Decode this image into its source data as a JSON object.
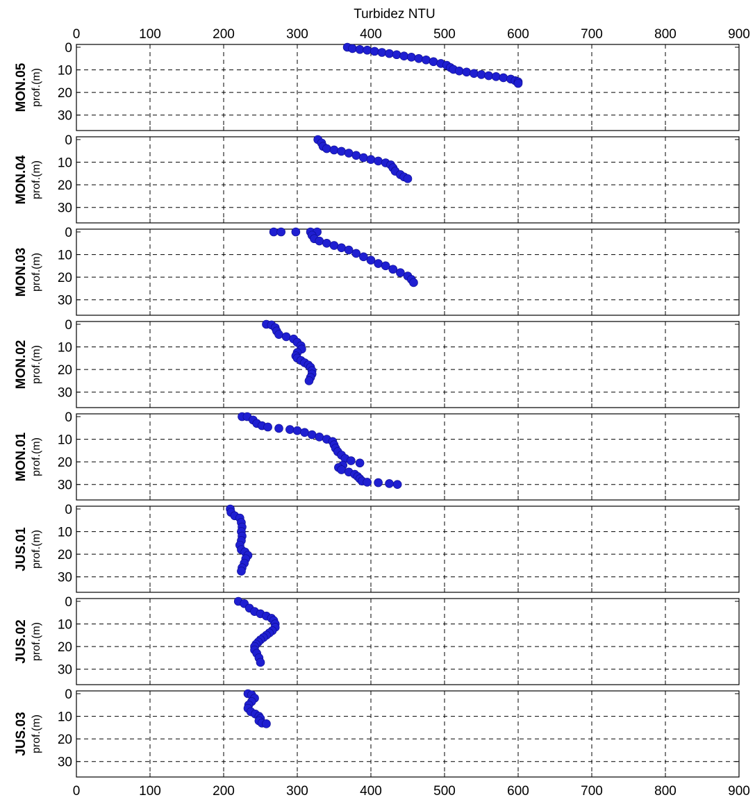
{
  "chart_data": {
    "type": "scatter",
    "title": "",
    "xlabel": "Turbidez NTU",
    "ylabel": "prof.(m)",
    "xlim": [
      0,
      900
    ],
    "ylim": [
      0,
      35
    ],
    "y_inverted": true,
    "x_ticks": [
      "0",
      "100",
      "200",
      "300",
      "400",
      "500",
      "600",
      "700",
      "800",
      "900"
    ],
    "y_ticks": [
      "0",
      "10",
      "20",
      "30"
    ],
    "grid": true,
    "marker_color": "#1f1fd1",
    "series": [
      {
        "name": "MON.05",
        "points": [
          [
            368,
            0
          ],
          [
            375,
            0.6
          ],
          [
            385,
            1
          ],
          [
            395,
            1.3
          ],
          [
            405,
            1.8
          ],
          [
            415,
            2.3
          ],
          [
            425,
            2.8
          ],
          [
            435,
            3.3
          ],
          [
            445,
            3.9
          ],
          [
            455,
            4.4
          ],
          [
            465,
            5
          ],
          [
            475,
            5.6
          ],
          [
            485,
            6.4
          ],
          [
            495,
            7.2
          ],
          [
            503,
            8
          ],
          [
            508,
            9
          ],
          [
            512,
            9.8
          ],
          [
            520,
            10.5
          ],
          [
            530,
            11
          ],
          [
            540,
            11.6
          ],
          [
            550,
            12.1
          ],
          [
            560,
            12.6
          ],
          [
            570,
            13
          ],
          [
            580,
            13.5
          ],
          [
            590,
            14.1
          ],
          [
            596,
            14.8
          ],
          [
            600,
            15.3
          ],
          [
            600,
            16
          ]
        ]
      },
      {
        "name": "MON.04",
        "points": [
          [
            328,
            0
          ],
          [
            333,
            1.5
          ],
          [
            335,
            3
          ],
          [
            340,
            4
          ],
          [
            350,
            4.6
          ],
          [
            360,
            5.2
          ],
          [
            370,
            6
          ],
          [
            380,
            7
          ],
          [
            390,
            8
          ],
          [
            400,
            8.8
          ],
          [
            410,
            9.5
          ],
          [
            420,
            10.3
          ],
          [
            427,
            11.2
          ],
          [
            430,
            12.5
          ],
          [
            433,
            14
          ],
          [
            440,
            15.5
          ],
          [
            445,
            16.5
          ],
          [
            450,
            17.3
          ]
        ]
      },
      {
        "name": "MON.03",
        "points": [
          [
            268,
            0
          ],
          [
            278,
            0
          ],
          [
            298,
            0
          ],
          [
            318,
            0
          ],
          [
            327,
            0
          ],
          [
            320,
            1.5
          ],
          [
            323,
            3
          ],
          [
            330,
            4
          ],
          [
            340,
            5
          ],
          [
            350,
            6
          ],
          [
            360,
            7
          ],
          [
            370,
            8
          ],
          [
            380,
            9.5
          ],
          [
            390,
            11
          ],
          [
            400,
            12.5
          ],
          [
            410,
            14
          ],
          [
            420,
            15
          ],
          [
            430,
            16.5
          ],
          [
            440,
            18
          ],
          [
            450,
            19.5
          ],
          [
            455,
            21
          ],
          [
            458,
            22.4
          ]
        ]
      },
      {
        "name": "MON.02",
        "points": [
          [
            258,
            0
          ],
          [
            265,
            0.3
          ],
          [
            270,
            1.5
          ],
          [
            272,
            3
          ],
          [
            275,
            4.5
          ],
          [
            285,
            5.5
          ],
          [
            295,
            6.5
          ],
          [
            300,
            8
          ],
          [
            305,
            9.5
          ],
          [
            306,
            11
          ],
          [
            300,
            12.5
          ],
          [
            298,
            14
          ],
          [
            300,
            15
          ],
          [
            305,
            16
          ],
          [
            310,
            17
          ],
          [
            315,
            18
          ],
          [
            318,
            19
          ],
          [
            320,
            20.5
          ],
          [
            320,
            22
          ],
          [
            318,
            23.5
          ],
          [
            316,
            25
          ]
        ]
      },
      {
        "name": "MON.01",
        "points": [
          [
            225,
            0
          ],
          [
            232,
            0
          ],
          [
            240,
            1.5
          ],
          [
            245,
            3
          ],
          [
            252,
            4
          ],
          [
            260,
            4.6
          ],
          [
            275,
            5.2
          ],
          [
            290,
            5.7
          ],
          [
            300,
            6.2
          ],
          [
            310,
            7
          ],
          [
            320,
            8
          ],
          [
            330,
            9
          ],
          [
            340,
            10
          ],
          [
            348,
            11
          ],
          [
            350,
            12.5
          ],
          [
            352,
            14
          ],
          [
            355,
            15.5
          ],
          [
            360,
            17
          ],
          [
            365,
            18.5
          ],
          [
            373,
            19.5
          ],
          [
            385,
            20.5
          ],
          [
            362,
            21.5
          ],
          [
            356,
            22.5
          ],
          [
            360,
            23.5
          ],
          [
            370,
            24.5
          ],
          [
            378,
            25.5
          ],
          [
            382,
            26.5
          ],
          [
            385,
            27.5
          ],
          [
            388,
            28.5
          ],
          [
            395,
            29
          ],
          [
            410,
            29.2
          ],
          [
            425,
            29.6
          ],
          [
            436,
            30
          ]
        ]
      },
      {
        "name": "JUS.01",
        "points": [
          [
            209,
            0
          ],
          [
            210,
            1.5
          ],
          [
            215,
            3
          ],
          [
            222,
            4
          ],
          [
            224,
            6
          ],
          [
            225,
            8
          ],
          [
            224,
            10
          ],
          [
            225,
            12
          ],
          [
            224,
            14
          ],
          [
            222,
            16
          ],
          [
            224,
            18
          ],
          [
            229,
            19
          ],
          [
            233,
            20.5
          ],
          [
            230,
            22
          ],
          [
            228,
            24
          ],
          [
            225,
            26
          ],
          [
            224,
            27.5
          ]
        ]
      },
      {
        "name": "JUS.02",
        "points": [
          [
            220,
            0
          ],
          [
            228,
            1
          ],
          [
            235,
            3
          ],
          [
            242,
            4.5
          ],
          [
            250,
            5.5
          ],
          [
            258,
            6.5
          ],
          [
            265,
            7.5
          ],
          [
            268,
            8.5
          ],
          [
            270,
            10
          ],
          [
            270,
            11.5
          ],
          [
            266,
            13
          ],
          [
            262,
            14
          ],
          [
            258,
            15
          ],
          [
            254,
            16
          ],
          [
            250,
            17
          ],
          [
            247,
            18
          ],
          [
            244,
            19
          ],
          [
            242,
            20
          ],
          [
            242,
            21.5
          ],
          [
            245,
            23
          ],
          [
            248,
            25
          ],
          [
            250,
            27
          ]
        ]
      },
      {
        "name": "JUS.03",
        "points": [
          [
            233,
            0
          ],
          [
            238,
            0.5
          ],
          [
            242,
            2
          ],
          [
            238,
            3.5
          ],
          [
            234,
            5
          ],
          [
            233,
            6.5
          ],
          [
            237,
            8
          ],
          [
            243,
            9
          ],
          [
            248,
            10
          ],
          [
            250,
            11
          ],
          [
            248,
            12
          ],
          [
            252,
            13
          ],
          [
            258,
            13.3
          ]
        ]
      }
    ]
  }
}
